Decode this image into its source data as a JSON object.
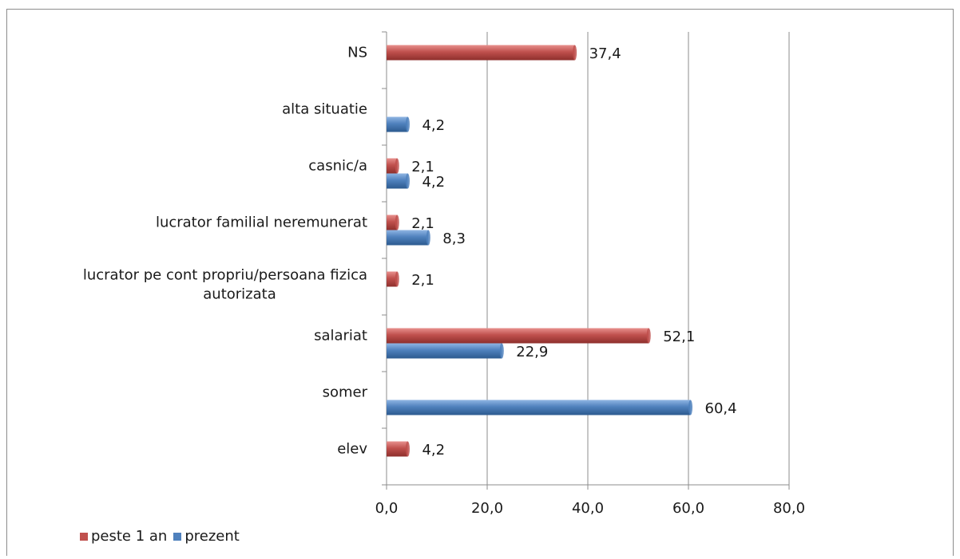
{
  "chart_data": {
    "type": "bar",
    "orientation": "horizontal",
    "title": "",
    "xlabel": "",
    "ylabel": "",
    "categories": [
      "elev",
      "somer",
      "salariat",
      "lucrator pe cont propriu/persoana fizica autorizata",
      "lucrator familial neremunerat",
      "casnic/a",
      "alta situatie",
      "NS"
    ],
    "category_lines": [
      [
        "elev"
      ],
      [
        "somer"
      ],
      [
        "salariat"
      ],
      [
        "lucrator pe cont propriu/persoana fizica",
        "autorizata"
      ],
      [
        "lucrator familial neremunerat"
      ],
      [
        "casnic/a"
      ],
      [
        "alta situatie"
      ],
      [
        "NS"
      ]
    ],
    "series": [
      {
        "name": "peste 1 an",
        "color": "#c0504d",
        "values": [
          4.2,
          null,
          52.1,
          2.1,
          2.1,
          2.1,
          null,
          37.4
        ],
        "labels": [
          "4,2",
          "",
          "52,1",
          "2,1",
          "2,1",
          "2,1",
          "",
          "37,4"
        ]
      },
      {
        "name": "prezent",
        "color": "#4f81bd",
        "values": [
          null,
          60.4,
          22.9,
          null,
          8.3,
          4.2,
          4.2,
          null
        ],
        "labels": [
          "",
          "60,4",
          "22,9",
          "",
          "8,3",
          "4,2",
          "4,2",
          ""
        ]
      }
    ],
    "xlim": [
      0,
      80
    ],
    "xticks": [
      0,
      20,
      40,
      60,
      80
    ],
    "xtick_labels": [
      "0,0",
      "20,0",
      "40,0",
      "60,0",
      "80,0"
    ],
    "grid": "vertical",
    "legend_position": "bottom-left"
  }
}
